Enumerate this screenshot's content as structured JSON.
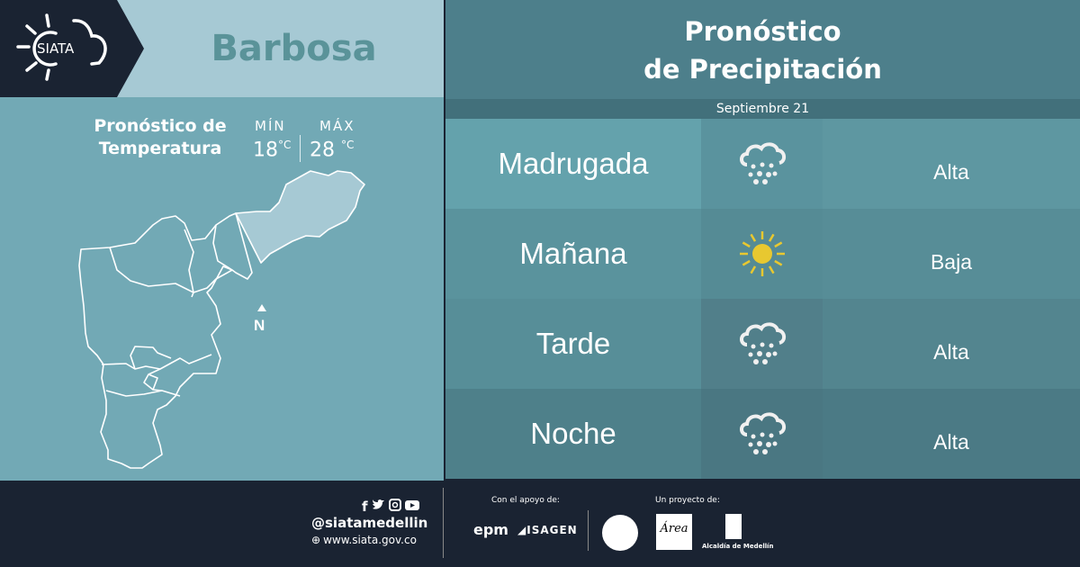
{
  "brand": {
    "logo_text": "SIATA"
  },
  "city": "Barbosa",
  "temperature": {
    "title_line1": "Pronóstico de",
    "title_line2": "Temperatura",
    "min_label": "MÍN",
    "max_label": "MÁX",
    "min_value": "18",
    "max_value": "28",
    "unit": "°C"
  },
  "map": {
    "north_label": "N",
    "highlight_color": "#a6c9d4"
  },
  "precipitation": {
    "title_line1": "Pronóstico",
    "title_line2": "de Precipitación",
    "date": "Septiembre 21",
    "rows": [
      {
        "period": "Madrugada",
        "icon": "rain-cloud-icon",
        "level": "Alta"
      },
      {
        "period": "Mañana",
        "icon": "sun-icon",
        "level": "Baja"
      },
      {
        "period": "Tarde",
        "icon": "rain-cloud-icon",
        "level": "Alta"
      },
      {
        "period": "Noche",
        "icon": "rain-cloud-icon",
        "level": "Alta"
      }
    ]
  },
  "footer": {
    "handle": "@siatamedellin",
    "website": "www.siata.gov.co",
    "support_label": "Con el apoyo de:",
    "project_label": "Un proyecto de:",
    "sponsor1": "epm",
    "sponsor2": "ISAGEN",
    "partner_area": "Área",
    "partner_alcaldia": "Alcaldía de Medellín",
    "social": [
      "facebook-icon",
      "twitter-icon",
      "instagram-icon",
      "youtube-icon"
    ]
  },
  "colors": {
    "navy": "#1a2332",
    "light": "#a6c9d4",
    "panel": "#72a9b5",
    "sun": "#e8c830"
  }
}
